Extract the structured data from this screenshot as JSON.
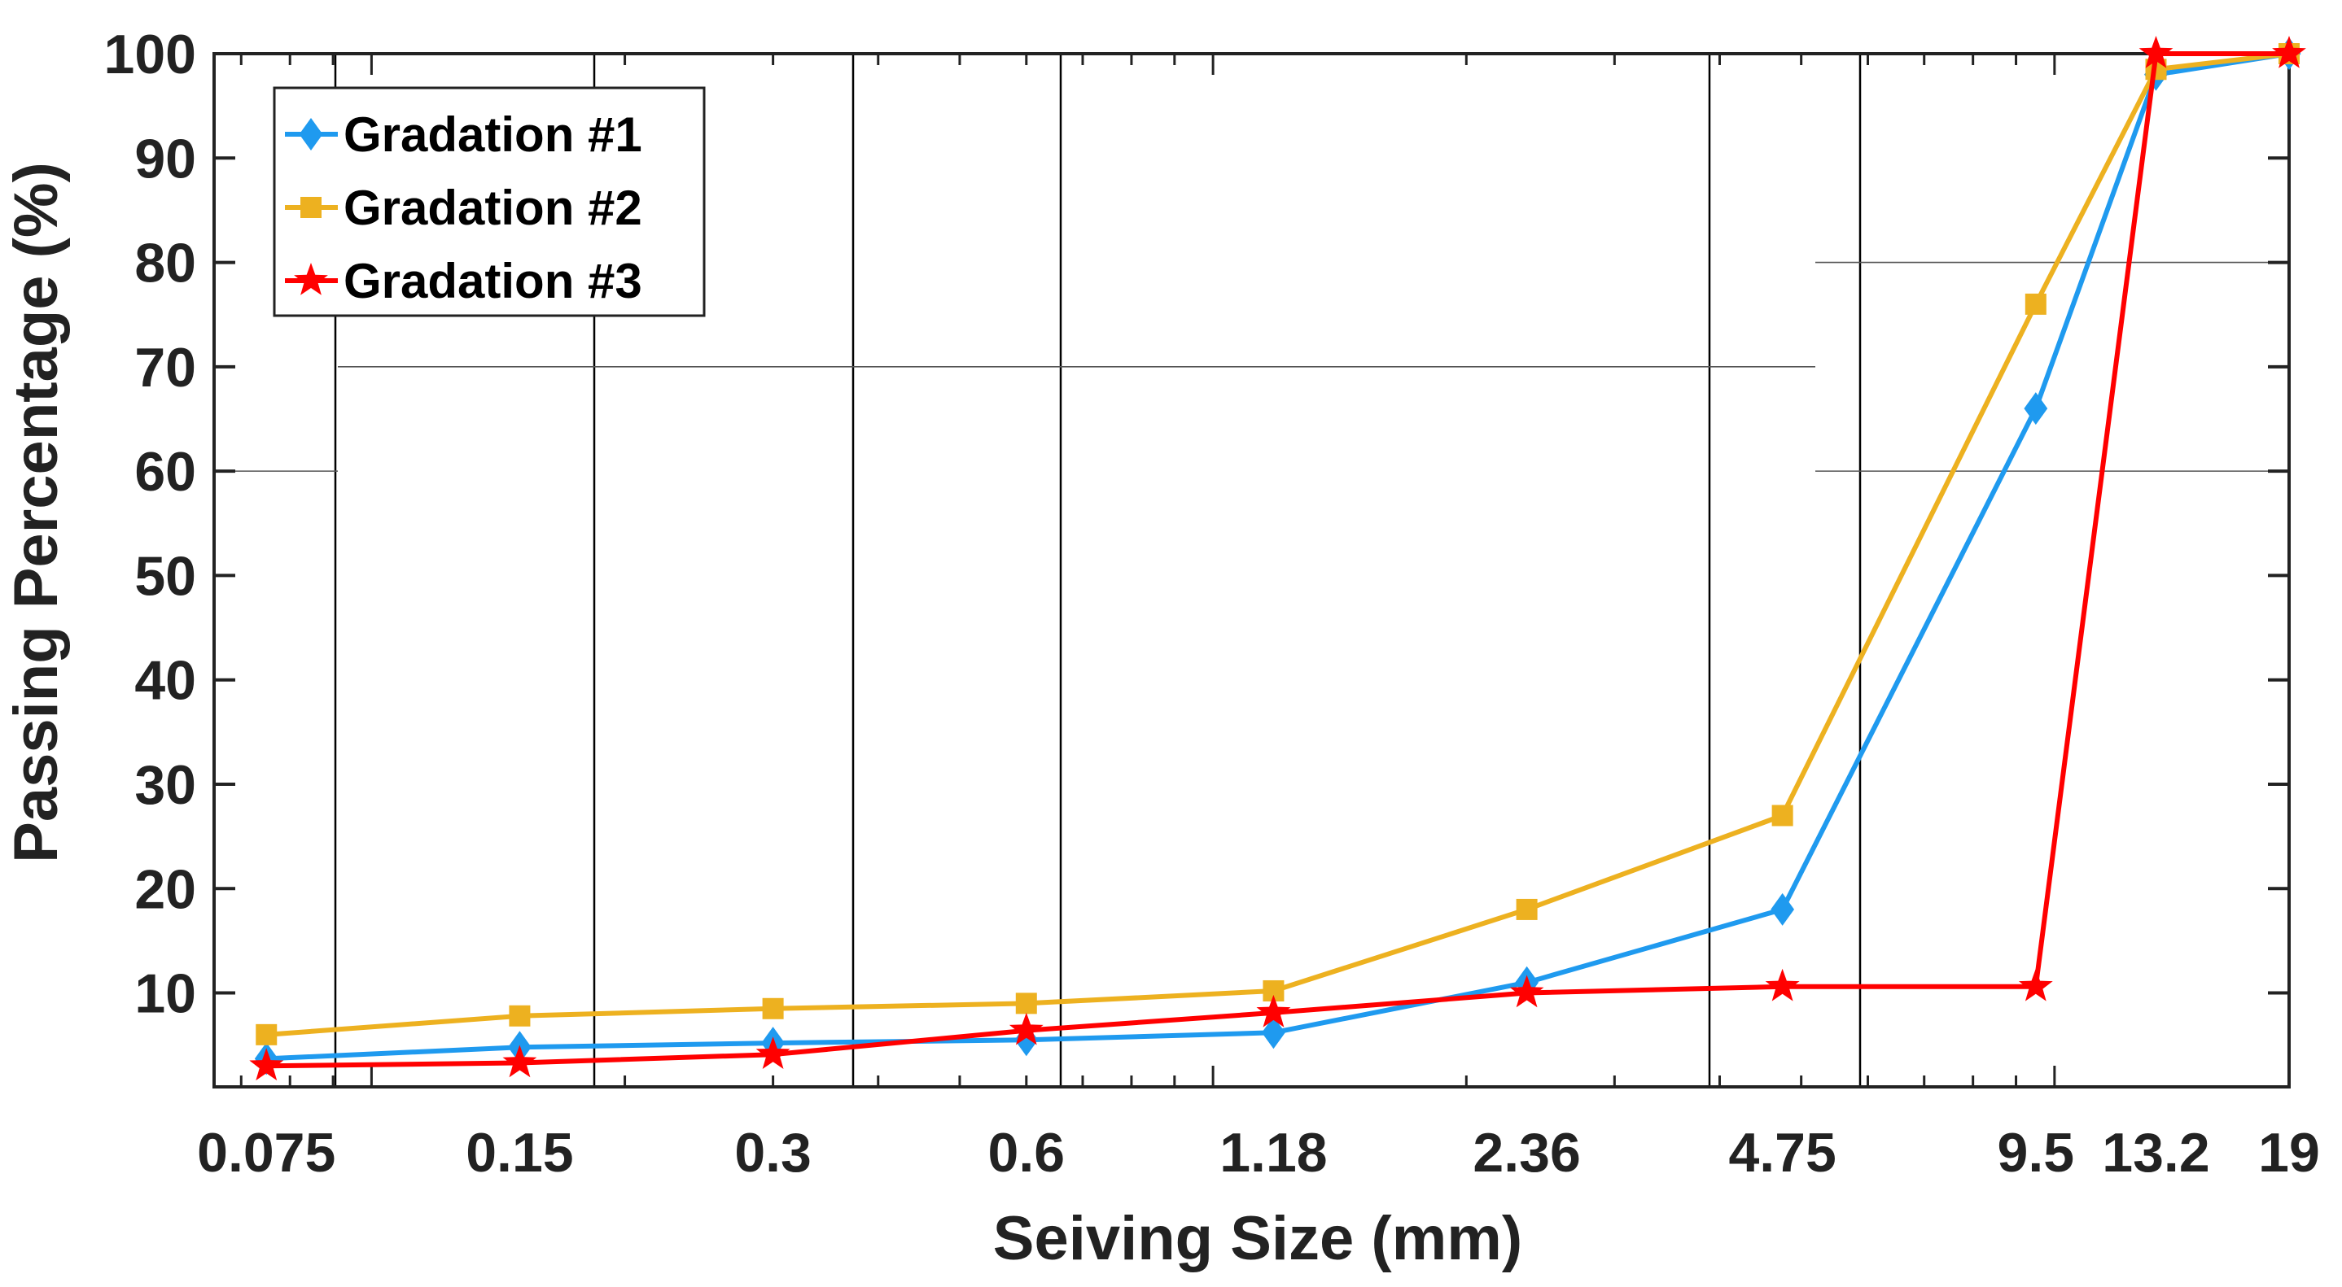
{
  "chart_data": {
    "type": "line",
    "title": "",
    "xlabel": "Seiving Size (mm)",
    "ylabel": "Passing Percentage (%)",
    "x_scale": "log",
    "x": [
      0.075,
      0.15,
      0.3,
      0.6,
      1.18,
      2.36,
      4.75,
      9.5,
      13.2,
      19
    ],
    "x_tick_labels": [
      "0.075",
      "0.15",
      "0.3",
      "0.6",
      "1.18",
      "2.36",
      "4.75",
      "9.5",
      "13.2",
      "19"
    ],
    "y_ticks": [
      10,
      20,
      30,
      40,
      50,
      60,
      70,
      80,
      90,
      100
    ],
    "ylim": [
      1,
      100
    ],
    "grid": "partial",
    "legend_position": "top-left",
    "series": [
      {
        "name": "Gradation #1",
        "color": "#1f9aef",
        "marker": "diamond",
        "values": [
          3.7,
          4.8,
          5.2,
          5.5,
          6.2,
          11,
          18,
          66,
          98,
          100
        ]
      },
      {
        "name": "Gradation #2",
        "color": "#edb120",
        "marker": "square",
        "values": [
          6,
          7.8,
          8.5,
          9,
          10.2,
          18,
          27,
          76,
          98.5,
          100
        ]
      },
      {
        "name": "Gradation #3",
        "color": "#ff0000",
        "marker": "star",
        "values": [
          3,
          3.3,
          4.1,
          6.4,
          8.1,
          10,
          10.6,
          10.6,
          100,
          100
        ]
      }
    ]
  }
}
